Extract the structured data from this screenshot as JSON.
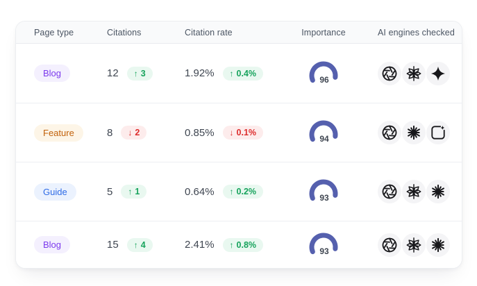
{
  "table": {
    "headers": {
      "page_type": "Page type",
      "citations": "Citations",
      "citation_rate": "Citation rate",
      "importance": "Importance",
      "ai_engines": "AI engines checked"
    },
    "rows": [
      {
        "page_type": "Blog",
        "page_type_variant": "violet",
        "citations": "12",
        "citations_delta": "3",
        "citations_trend": "up",
        "citation_rate": "1.92%",
        "citation_rate_delta": "0.4%",
        "citation_rate_trend": "up",
        "importance": "96",
        "engines": [
          "openai",
          "faceted-star",
          "sparkle-star"
        ]
      },
      {
        "page_type": "Feature",
        "page_type_variant": "orange",
        "citations": "8",
        "citations_delta": "2",
        "citations_trend": "down",
        "citation_rate": "0.85%",
        "citation_rate_delta": "0.1%",
        "citation_rate_trend": "down",
        "importance": "94",
        "engines": [
          "openai",
          "starburst",
          "box-sparkle"
        ]
      },
      {
        "page_type": "Guide",
        "page_type_variant": "blue",
        "citations": "5",
        "citations_delta": "1",
        "citations_trend": "up",
        "citation_rate": "0.64%",
        "citation_rate_delta": "0.2%",
        "citation_rate_trend": "up",
        "importance": "93",
        "engines": [
          "openai",
          "faceted-star",
          "starburst"
        ]
      },
      {
        "page_type": "Blog",
        "page_type_variant": "violet",
        "citations": "15",
        "citations_delta": "4",
        "citations_trend": "up",
        "citation_rate": "2.41%",
        "citation_rate_delta": "0.8%",
        "citation_rate_trend": "up",
        "importance": "93",
        "engines": [
          "openai",
          "faceted-star",
          "starburst"
        ]
      }
    ]
  },
  "icons": {
    "up_arrow": "↑",
    "down_arrow": "↓"
  },
  "colors": {
    "gauge_arc": "#5560ae",
    "badge_violet_text": "#7c3aed",
    "badge_violet_bg": "#f4f0fe",
    "badge_orange_text": "#c2620b",
    "badge_orange_bg": "#fdf5e7",
    "badge_blue_text": "#2e6be6",
    "badge_blue_bg": "#ebf2fe",
    "trend_up_text": "#17a35c",
    "trend_up_bg": "#e9f8f0",
    "trend_down_text": "#dd2c2c",
    "trend_down_bg": "#fdecec",
    "header_bg": "#f9fafb",
    "icon_circle_bg": "#f4f4f6"
  }
}
